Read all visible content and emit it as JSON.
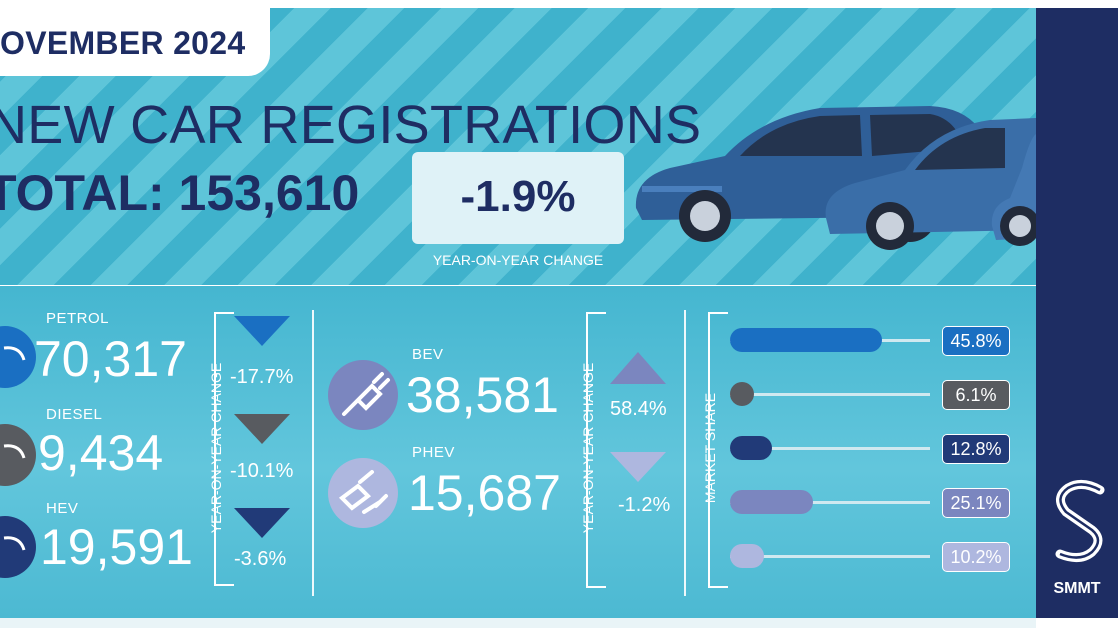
{
  "header": {
    "date": "OVEMBER 2024",
    "title": "NEW CAR REGISTRATIONS",
    "total": "TOTAL: 153,610",
    "yoy_value": "-1.9%",
    "yoy_label": "YEAR-ON-YEAR CHANGE"
  },
  "fuels_left": [
    {
      "label": "PETROL",
      "value": "70,317",
      "change": "-17.7%",
      "direction": "down",
      "color": "#1a6fc2"
    },
    {
      "label": "DIESEL",
      "value": "9,434",
      "change": "-10.1%",
      "direction": "down",
      "color": "#585b60"
    },
    {
      "label": "HEV",
      "value": "19,591",
      "change": "-3.6%",
      "direction": "down",
      "color": "#213a78"
    }
  ],
  "fuels_right": [
    {
      "label": "BEV",
      "value": "38,581",
      "change": "58.4%",
      "direction": "up",
      "color": "#7b86bf"
    },
    {
      "label": "PHEV",
      "value": "15,687",
      "change": "-1.2%",
      "direction": "down",
      "color": "#aeb7df"
    }
  ],
  "yoy_vertical_label": "YEAR-ON-YEAR CHANGE",
  "market_share": {
    "label": "MARKET SHARE",
    "items": [
      {
        "name": "petrol",
        "value": "45.8%",
        "fraction": 0.458,
        "color": "#1a6fc2"
      },
      {
        "name": "diesel",
        "value": "6.1%",
        "fraction": 0.061,
        "color": "#585b60"
      },
      {
        "name": "hev",
        "value": "12.8%",
        "fraction": 0.128,
        "color": "#213a78"
      },
      {
        "name": "bev",
        "value": "25.1%",
        "fraction": 0.251,
        "color": "#7b86bf"
      },
      {
        "name": "phev",
        "value": "10.2%",
        "fraction": 0.102,
        "color": "#aeb7df"
      }
    ]
  },
  "brand": {
    "name": "SMMT"
  }
}
